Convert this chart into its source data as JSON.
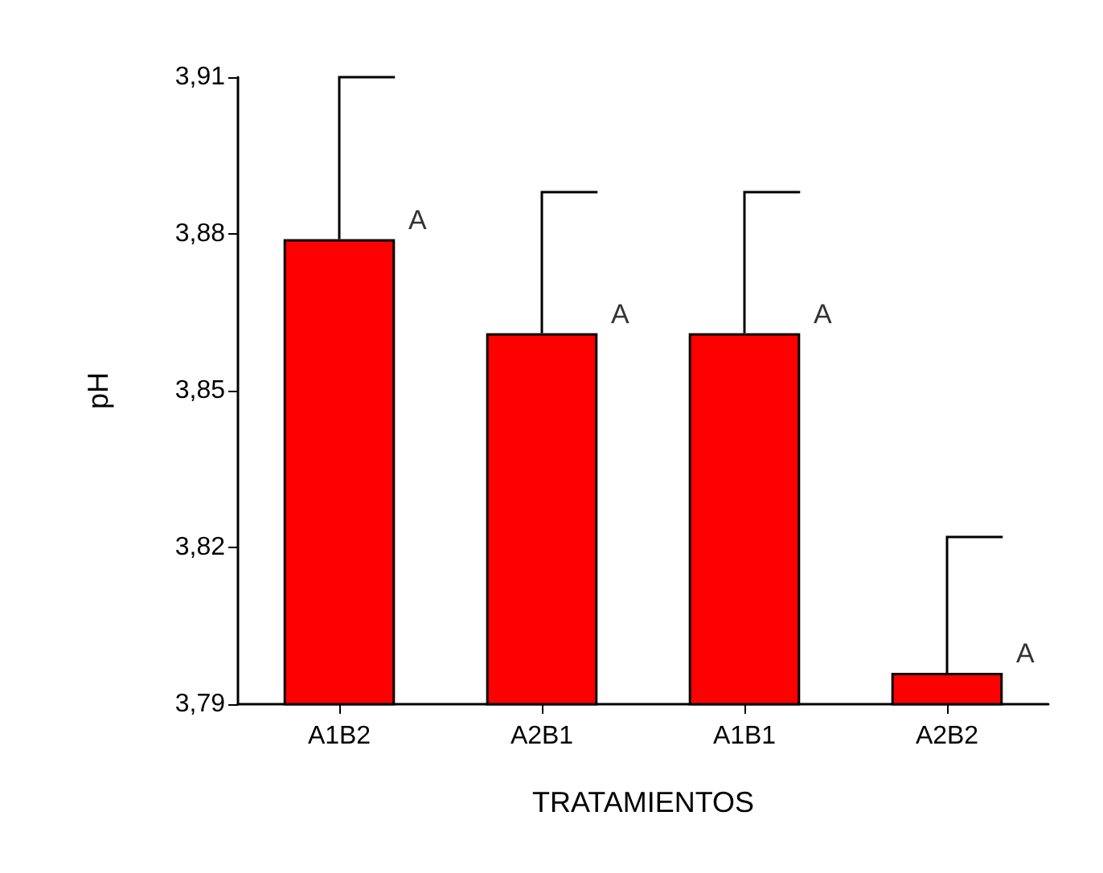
{
  "chart_data": {
    "type": "bar",
    "xlabel": "TRATAMIENTOS",
    "ylabel": "pH",
    "categories": [
      "A1B2",
      "A2B1",
      "A1B1",
      "A2B2"
    ],
    "values": [
      3.879,
      3.861,
      3.861,
      3.796
    ],
    "errors": [
      [
        3.879,
        3.91
      ],
      [
        3.861,
        3.888
      ],
      [
        3.861,
        3.888
      ],
      [
        3.796,
        3.822
      ]
    ],
    "color": "#ff0000",
    "ylim": [
      3.79,
      3.91
    ],
    "yticks": [
      {
        "value": 3.79,
        "label": "3,79"
      },
      {
        "value": 3.82,
        "label": "3,82"
      },
      {
        "value": 3.85,
        "label": "3,85"
      },
      {
        "value": 3.88,
        "label": "3,88"
      },
      {
        "value": 3.91,
        "label": "3,91"
      }
    ],
    "annotations": [
      {
        "text": "A",
        "x": "A1B2",
        "y": 3.879
      },
      {
        "text": "A",
        "x": "A2B1",
        "y": 3.861
      },
      {
        "text": "A",
        "x": "A1B1",
        "y": 3.861
      },
      {
        "text": "A",
        "x": "A2B2",
        "y": 3.796
      }
    ],
    "grid": false
  }
}
